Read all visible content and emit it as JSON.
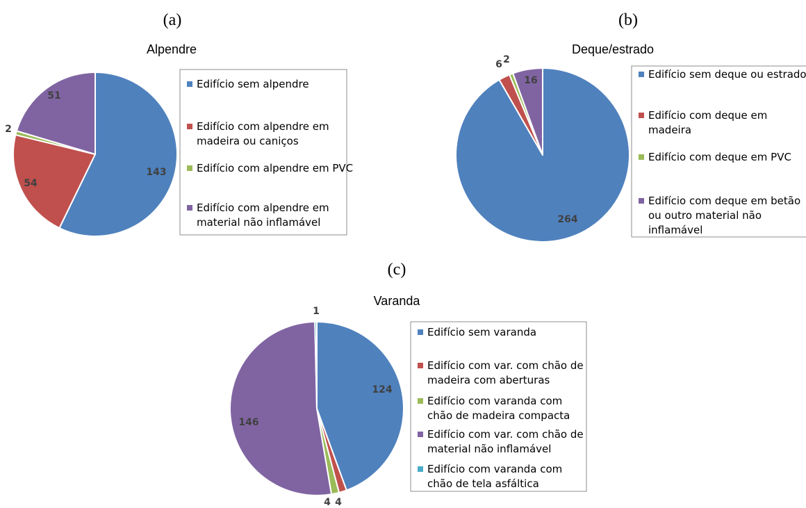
{
  "chart_data": [
    {
      "type": "pie",
      "panel_label": "(a)",
      "title": "Alpendre",
      "categories": [
        "Edifício sem alpendre",
        "Edifício com alpendre em madeira ou caniços",
        "Edifício com alpendre em PVC",
        "Edifício com alpendre em material não inflamável"
      ],
      "values": [
        143,
        54,
        2,
        51
      ],
      "data_labels": [
        "143",
        "54",
        "2",
        "51"
      ],
      "colors": [
        "#4f81bd",
        "#c0504d",
        "#9bbb59",
        "#8064a2"
      ],
      "legend_position": "right"
    },
    {
      "type": "pie",
      "panel_label": "(b)",
      "title": "Deque/estrado",
      "categories": [
        "Edifício sem deque ou estrado",
        "Edifício com deque em madeira",
        "Edifício com deque em  PVC",
        "Edifício com deque em betão ou outro material não inflamável"
      ],
      "values": [
        264,
        6,
        2,
        16
      ],
      "data_labels": [
        "264",
        "6",
        "2",
        "16"
      ],
      "colors": [
        "#4f81bd",
        "#c0504d",
        "#9bbb59",
        "#8064a2"
      ],
      "legend_position": "right"
    },
    {
      "type": "pie",
      "panel_label": "(c)",
      "title": "Varanda",
      "categories": [
        "Edifício sem varanda",
        "Edifício com var. com chão de madeira com aberturas",
        "Edifício com varanda com chão de madeira compacta",
        "Edifício com var. com chão de material não inflamável",
        "Edifício com varanda com chão de tela asfáltica"
      ],
      "values": [
        124,
        4,
        4,
        146,
        1
      ],
      "data_labels": [
        "124",
        "4",
        "4",
        "146",
        "1"
      ],
      "colors": [
        "#4f81bd",
        "#c0504d",
        "#9bbb59",
        "#8064a2",
        "#4bacc6"
      ],
      "legend_position": "right"
    }
  ]
}
